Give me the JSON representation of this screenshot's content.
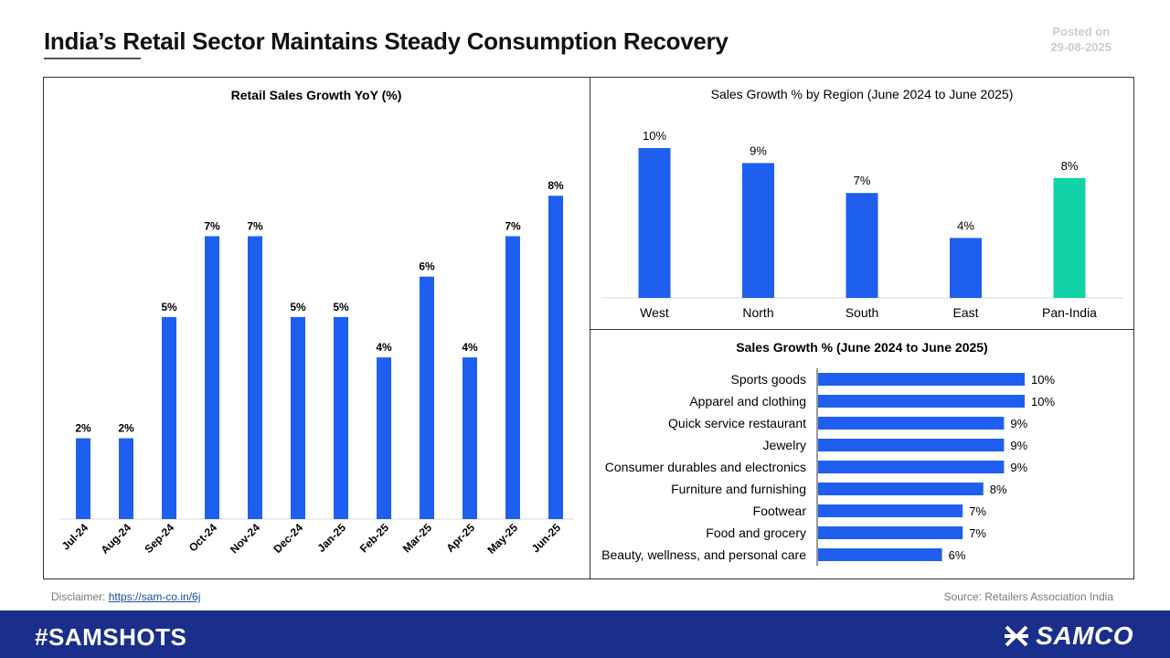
{
  "header": {
    "title": "India’s Retail Sector Maintains Steady Consumption Recovery",
    "posted_label": "Posted on",
    "posted_date": "29-08-2025"
  },
  "colors": {
    "bar": "#1f5ff0",
    "highlight": "#12d3a6",
    "footer": "#1a2e8c"
  },
  "chart_data": [
    {
      "type": "bar",
      "title": "Retail Sales Growth YoY (%)",
      "categories": [
        "Jul-24",
        "Aug-24",
        "Sep-24",
        "Oct-24",
        "Nov-24",
        "Dec-24",
        "Jan-25",
        "Feb-25",
        "Mar-25",
        "Apr-25",
        "May-25",
        "Jun-25"
      ],
      "values": [
        2,
        2,
        5,
        7,
        7,
        5,
        5,
        4,
        6,
        4,
        7,
        8
      ],
      "value_labels": [
        "2%",
        "2%",
        "5%",
        "7%",
        "7%",
        "5%",
        "5%",
        "4%",
        "6%",
        "4%",
        "7%",
        "8%"
      ],
      "ylim": [
        0,
        9
      ]
    },
    {
      "type": "bar",
      "title": "Sales Growth  % by Region  (June  2024 to June  2025)",
      "categories": [
        "West",
        "North",
        "South",
        "East",
        "Pan-India"
      ],
      "values": [
        10,
        9,
        7,
        4,
        8
      ],
      "value_labels": [
        "10%",
        "9%",
        "7%",
        "4%",
        "8%"
      ],
      "highlight": "Pan-India",
      "ylim": [
        0,
        10
      ]
    },
    {
      "type": "bar",
      "orientation": "horizontal",
      "title": "Sales Growth % (June 2024 to June 2025)",
      "categories": [
        "Sports goods",
        "Apparel and clothing",
        "Quick service restaurant",
        "Jewelry",
        "Consumer durables and electronics",
        "Furniture and furnishing",
        "Footwear",
        "Food and grocery",
        "Beauty, wellness, and personal care"
      ],
      "values": [
        10,
        10,
        9,
        9,
        9,
        8,
        7,
        7,
        6
      ],
      "value_labels": [
        "10%",
        "10%",
        "9%",
        "9%",
        "9%",
        "8%",
        "7%",
        "7%",
        "6%"
      ],
      "xlim": [
        0,
        10
      ]
    }
  ],
  "footer": {
    "disclaimer_label": "Disclaimer:",
    "disclaimer_link": "https://sam-co.in/6j",
    "source": "Source: Retailers Association India",
    "hashtag": "#SAMSHOTS",
    "brand": "SAMCO",
    "brand_icon": "samco-logo-icon"
  }
}
